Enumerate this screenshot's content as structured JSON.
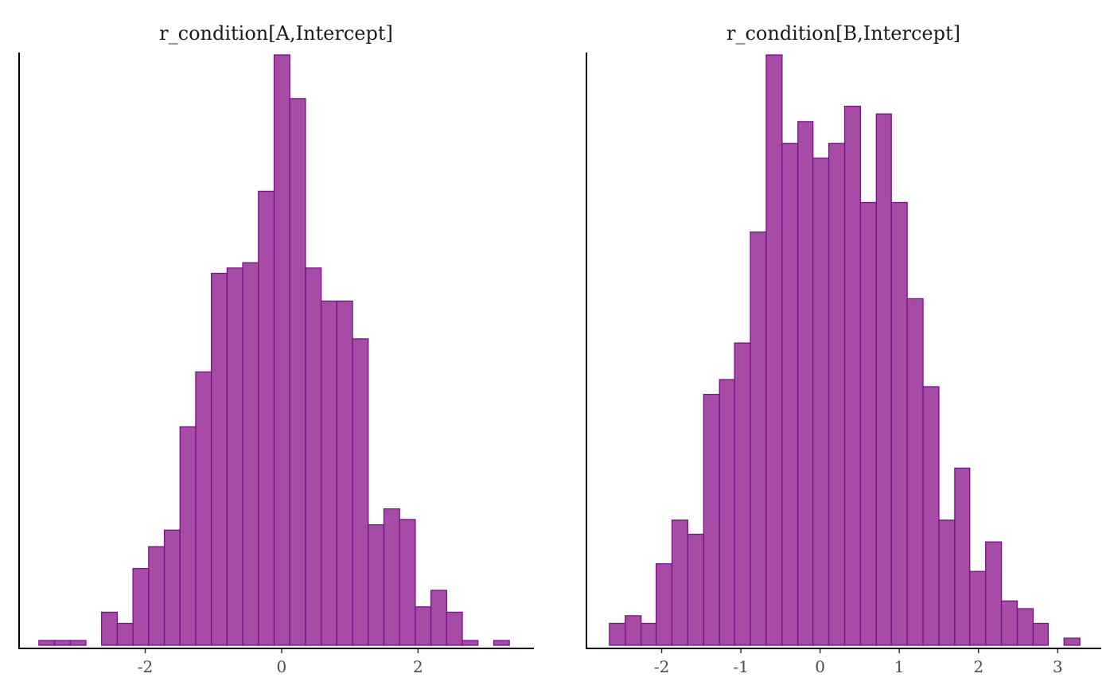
{
  "colors": {
    "bar_fill": "#A64CA6",
    "bar_outline": "#7A0F8A",
    "axis": "#000000",
    "background": "#ffffff"
  },
  "chart_data": [
    {
      "type": "bar",
      "title": "r_condition[A,Intercept]",
      "xlabel": "",
      "ylabel": "",
      "xlim": [
        -3.85,
        3.7
      ],
      "ylim": [
        0,
        1
      ],
      "xticks": [
        -2,
        0,
        2
      ],
      "xtick_labels": [
        "-2",
        "0",
        "2"
      ],
      "yaxis_ticks": false,
      "grid": false,
      "bin_width": 0.23,
      "bins": [
        {
          "x0": -3.56,
          "x1": -3.33,
          "value": 0.008
        },
        {
          "x0": -3.33,
          "x1": -3.1,
          "value": 0.008
        },
        {
          "x0": -3.1,
          "x1": -2.87,
          "value": 0.008
        },
        {
          "x0": -2.87,
          "x1": -2.64,
          "value": 0.0
        },
        {
          "x0": -2.64,
          "x1": -2.41,
          "value": 0.056
        },
        {
          "x0": -2.41,
          "x1": -2.18,
          "value": 0.037
        },
        {
          "x0": -2.18,
          "x1": -1.95,
          "value": 0.13
        },
        {
          "x0": -1.95,
          "x1": -1.72,
          "value": 0.167
        },
        {
          "x0": -1.72,
          "x1": -1.49,
          "value": 0.195
        },
        {
          "x0": -1.49,
          "x1": -1.26,
          "value": 0.37
        },
        {
          "x0": -1.26,
          "x1": -1.03,
          "value": 0.463
        },
        {
          "x0": -1.03,
          "x1": -0.8,
          "value": 0.63
        },
        {
          "x0": -0.8,
          "x1": -0.57,
          "value": 0.639
        },
        {
          "x0": -0.57,
          "x1": -0.34,
          "value": 0.648
        },
        {
          "x0": -0.34,
          "x1": -0.11,
          "value": 0.769
        },
        {
          "x0": -0.11,
          "x1": 0.12,
          "value": 1.0
        },
        {
          "x0": 0.12,
          "x1": 0.35,
          "value": 0.926
        },
        {
          "x0": 0.35,
          "x1": 0.58,
          "value": 0.639
        },
        {
          "x0": 0.58,
          "x1": 0.81,
          "value": 0.583
        },
        {
          "x0": 0.81,
          "x1": 1.04,
          "value": 0.583
        },
        {
          "x0": 1.04,
          "x1": 1.27,
          "value": 0.519
        },
        {
          "x0": 1.27,
          "x1": 1.5,
          "value": 0.204
        },
        {
          "x0": 1.5,
          "x1": 1.73,
          "value": 0.231
        },
        {
          "x0": 1.73,
          "x1": 1.96,
          "value": 0.213
        },
        {
          "x0": 1.96,
          "x1": 2.19,
          "value": 0.065
        },
        {
          "x0": 2.19,
          "x1": 2.42,
          "value": 0.093
        },
        {
          "x0": 2.42,
          "x1": 2.65,
          "value": 0.056
        },
        {
          "x0": 2.65,
          "x1": 2.88,
          "value": 0.008
        },
        {
          "x0": 2.88,
          "x1": 3.11,
          "value": 0.0
        },
        {
          "x0": 3.11,
          "x1": 3.34,
          "value": 0.008
        }
      ]
    },
    {
      "type": "bar",
      "title": "r_condition[B,Intercept]",
      "xlabel": "",
      "ylabel": "",
      "xlim": [
        -2.95,
        3.55
      ],
      "ylim": [
        0,
        1
      ],
      "xticks": [
        -2,
        -1,
        0,
        1,
        2,
        3
      ],
      "xtick_labels": [
        "-2",
        "-1",
        "0",
        "1",
        "2",
        "3"
      ],
      "yaxis_ticks": false,
      "grid": false,
      "bin_width": 0.198,
      "bins": [
        {
          "x0": -2.66,
          "x1": -2.46,
          "value": 0.037
        },
        {
          "x0": -2.46,
          "x1": -2.26,
          "value": 0.05
        },
        {
          "x0": -2.26,
          "x1": -2.07,
          "value": 0.037
        },
        {
          "x0": -2.07,
          "x1": -1.87,
          "value": 0.138
        },
        {
          "x0": -1.87,
          "x1": -1.67,
          "value": 0.212
        },
        {
          "x0": -1.67,
          "x1": -1.47,
          "value": 0.188
        },
        {
          "x0": -1.47,
          "x1": -1.27,
          "value": 0.425
        },
        {
          "x0": -1.27,
          "x1": -1.08,
          "value": 0.45
        },
        {
          "x0": -1.08,
          "x1": -0.88,
          "value": 0.512
        },
        {
          "x0": -0.88,
          "x1": -0.68,
          "value": 0.7
        },
        {
          "x0": -0.68,
          "x1": -0.48,
          "value": 1.0
        },
        {
          "x0": -0.48,
          "x1": -0.28,
          "value": 0.85
        },
        {
          "x0": -0.28,
          "x1": -0.09,
          "value": 0.887
        },
        {
          "x0": -0.09,
          "x1": 0.11,
          "value": 0.825
        },
        {
          "x0": 0.11,
          "x1": 0.31,
          "value": 0.85
        },
        {
          "x0": 0.31,
          "x1": 0.51,
          "value": 0.913
        },
        {
          "x0": 0.51,
          "x1": 0.71,
          "value": 0.75
        },
        {
          "x0": 0.71,
          "x1": 0.9,
          "value": 0.9
        },
        {
          "x0": 0.9,
          "x1": 1.1,
          "value": 0.75
        },
        {
          "x0": 1.1,
          "x1": 1.3,
          "value": 0.587
        },
        {
          "x0": 1.3,
          "x1": 1.5,
          "value": 0.438
        },
        {
          "x0": 1.5,
          "x1": 1.7,
          "value": 0.212
        },
        {
          "x0": 1.7,
          "x1": 1.89,
          "value": 0.3
        },
        {
          "x0": 1.89,
          "x1": 2.09,
          "value": 0.125
        },
        {
          "x0": 2.09,
          "x1": 2.29,
          "value": 0.175
        },
        {
          "x0": 2.29,
          "x1": 2.49,
          "value": 0.075
        },
        {
          "x0": 2.49,
          "x1": 2.69,
          "value": 0.062
        },
        {
          "x0": 2.69,
          "x1": 2.88,
          "value": 0.037
        },
        {
          "x0": 2.88,
          "x1": 3.08,
          "value": 0.0
        },
        {
          "x0": 3.08,
          "x1": 3.28,
          "value": 0.012
        }
      ]
    }
  ]
}
